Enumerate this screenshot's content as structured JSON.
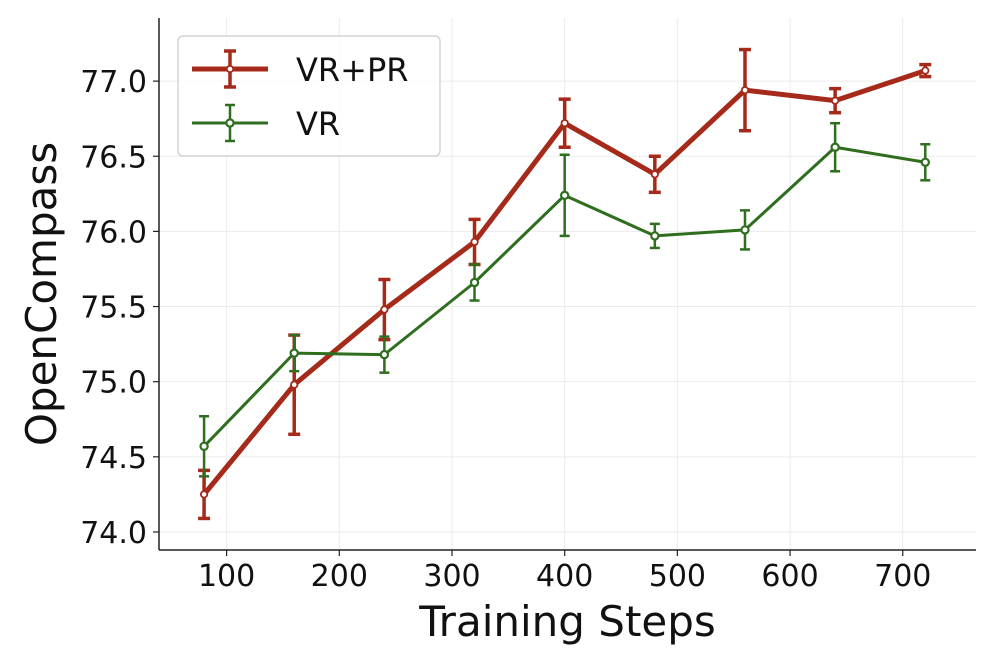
{
  "chart_data": {
    "type": "line",
    "xlabel": "Training Steps",
    "ylabel": "OpenCompass",
    "xlim": [
      40,
      765
    ],
    "ylim": [
      73.88,
      77.42
    ],
    "xticks": [
      100,
      200,
      300,
      400,
      500,
      600,
      700
    ],
    "yticks": [
      74.0,
      74.5,
      75.0,
      75.5,
      76.0,
      76.5,
      77.0
    ],
    "ytick_labels": [
      "74.0",
      "74.5",
      "75.0",
      "75.5",
      "76.0",
      "76.5",
      "77.0"
    ],
    "grid": true,
    "legend_position": "top-left",
    "x": [
      80,
      160,
      240,
      320,
      400,
      480,
      560,
      640,
      720
    ],
    "series": [
      {
        "name": "VR+PR",
        "color": "#a52a1a",
        "values": [
          74.25,
          74.98,
          75.48,
          75.93,
          76.72,
          76.38,
          76.94,
          76.87,
          77.07
        ],
        "errors": [
          0.16,
          0.33,
          0.2,
          0.15,
          0.16,
          0.12,
          0.27,
          0.08,
          0.04
        ]
      },
      {
        "name": "VR",
        "color": "#2e6e1e",
        "values": [
          74.57,
          75.19,
          75.18,
          75.66,
          76.24,
          75.97,
          76.01,
          76.56,
          76.46
        ],
        "errors": [
          0.2,
          0.12,
          0.12,
          0.12,
          0.27,
          0.08,
          0.13,
          0.16,
          0.12
        ]
      }
    ]
  }
}
